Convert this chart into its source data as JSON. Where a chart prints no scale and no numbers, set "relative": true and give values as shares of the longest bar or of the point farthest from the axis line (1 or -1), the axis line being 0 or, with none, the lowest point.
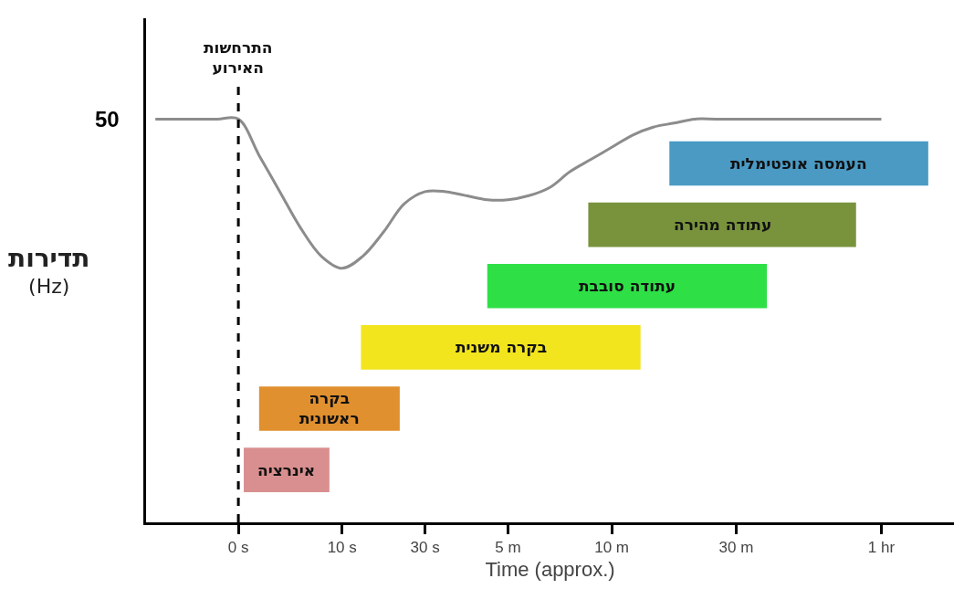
{
  "chart_data": {
    "type": "line",
    "relative": true,
    "xlabel": "Time (approx.)",
    "ylabel": "תדירות\n(Hz)",
    "categories": [
      null,
      null,
      null,
      null,
      "0 s",
      null,
      null,
      null,
      null,
      "10 s",
      null,
      null,
      null,
      "30 s",
      null,
      null,
      null,
      "5 m",
      null,
      null,
      null,
      null,
      "10 m",
      null,
      null,
      null,
      null,
      null,
      "30 m",
      null,
      null,
      null,
      null,
      null,
      null,
      "1 hr",
      null,
      null,
      null
    ],
    "series": [
      {
        "color": "#8c8c8c",
        "values": [
          1,
          1,
          1,
          1,
          1,
          0.91,
          0.82,
          0.73,
          0.66,
          0.63,
          0.66,
          0.72,
          0.79,
          0.82,
          0.82,
          0.81,
          0.8,
          0.8,
          0.81,
          0.83,
          0.87,
          0.9,
          0.93,
          0.96,
          0.98,
          0.99,
          1,
          1,
          1,
          1,
          1,
          1,
          1,
          1,
          1,
          1,
          null,
          null,
          null
        ]
      }
    ],
    "annotations": [
      "50",
      "אינרציה",
      "בקרה\nראשונית",
      "בקרה משנית",
      "עתודה סובבת",
      "עתודה מהירה",
      "העמסה אופטימלית"
    ],
    "ref_lines": [
      {
        "axis": "x",
        "value": "0 s",
        "label": "התרחשות\nהאירוע",
        "line_style": "dashed",
        "color": "#000000"
      }
    ],
    "grid": false,
    "marker": "none",
    "line_style": "solid"
  }
}
